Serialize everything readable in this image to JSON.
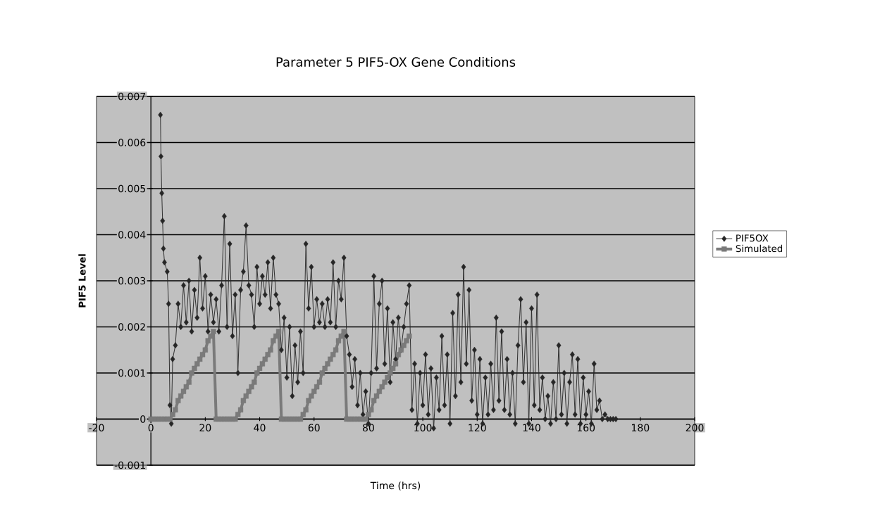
{
  "chart_data": {
    "type": "line",
    "title": "Parameter 5 PIF5-OX Gene Conditions",
    "xlabel": "Time (hrs)",
    "ylabel": "PIF5 Level",
    "xlim": [
      -20,
      200
    ],
    "xticks": [
      -20,
      0,
      20,
      40,
      60,
      80,
      100,
      120,
      140,
      160,
      180,
      200
    ],
    "ylim": [
      -0.001,
      0.007
    ],
    "yticks": [
      -0.001,
      0,
      0.001,
      0.002,
      0.003,
      0.004,
      0.005,
      0.006,
      0.007
    ],
    "grid": "y",
    "legend": "right",
    "series": [
      {
        "name": "PIF5OX",
        "color": "#262626",
        "marker": "diamond",
        "x": [
          3.5,
          3.7,
          4,
          4.3,
          4.6,
          5,
          6,
          6.5,
          7,
          7.5,
          8,
          9,
          10,
          11,
          12,
          13,
          14,
          15,
          16,
          17,
          18,
          19,
          20,
          21,
          22,
          23,
          24,
          25,
          26,
          27,
          28,
          29,
          30,
          31,
          32,
          33,
          34,
          35,
          36,
          37,
          38,
          39,
          40,
          41,
          42,
          43,
          44,
          45,
          46,
          47,
          48,
          49,
          50,
          51,
          52,
          53,
          54,
          55,
          56,
          57,
          58,
          59,
          60,
          61,
          62,
          63,
          64,
          65,
          66,
          67,
          68,
          69,
          70,
          71,
          72,
          73,
          74,
          75,
          76,
          77,
          78,
          79,
          80,
          81,
          82,
          83,
          84,
          85,
          86,
          87,
          88,
          89,
          90,
          91,
          92,
          93,
          94,
          95,
          96,
          97,
          98,
          99,
          100,
          101,
          102,
          103,
          104,
          105,
          106,
          107,
          108,
          109,
          110,
          111,
          112,
          113,
          114,
          115,
          116,
          117,
          118,
          119,
          120,
          121,
          122,
          123,
          124,
          125,
          126,
          127,
          128,
          129,
          130,
          131,
          132,
          133,
          134,
          135,
          136,
          137,
          138,
          139,
          140,
          141,
          142,
          143,
          144,
          145,
          146,
          147,
          148,
          149,
          150,
          151,
          152,
          153,
          154,
          155,
          156,
          157,
          158,
          159,
          160,
          161,
          162,
          163,
          164,
          165,
          166,
          167,
          168,
          169,
          170,
          171
        ],
        "values": [
          0.0066,
          0.0057,
          0.0049,
          0.0043,
          0.0037,
          0.0034,
          0.0032,
          0.0025,
          0.0003,
          -0.0001,
          0.0013,
          0.0016,
          0.0025,
          0.002,
          0.0029,
          0.0021,
          0.003,
          0.0019,
          0.0028,
          0.0022,
          0.0035,
          0.0024,
          0.0031,
          0.0019,
          0.0027,
          0.0021,
          0.0026,
          0.0019,
          0.0029,
          0.0044,
          0.002,
          0.0038,
          0.0018,
          0.0027,
          0.001,
          0.0028,
          0.0032,
          0.0042,
          0.0029,
          0.0027,
          0.002,
          0.0033,
          0.0025,
          0.0031,
          0.0027,
          0.0034,
          0.0024,
          0.0035,
          0.0027,
          0.0025,
          0.0015,
          0.0022,
          0.0009,
          0.002,
          0.0005,
          0.0016,
          0.0008,
          0.0019,
          0.001,
          0.0038,
          0.0024,
          0.0033,
          0.002,
          0.0026,
          0.0021,
          0.0025,
          0.002,
          0.0026,
          0.0021,
          0.0034,
          0.002,
          0.003,
          0.0026,
          0.0035,
          0.0018,
          0.0014,
          0.0007,
          0.0013,
          0.0003,
          0.001,
          0.0001,
          0.0006,
          -0.0001,
          0.001,
          0.0031,
          0.0011,
          0.0025,
          0.003,
          0.0012,
          0.0024,
          0.0008,
          0.0021,
          0.0013,
          0.0022,
          0.0015,
          0.002,
          0.0025,
          0.0029,
          0.0002,
          0.0012,
          -0.0001,
          0.001,
          0.0003,
          0.0014,
          0.0001,
          0.0011,
          -0.0002,
          0.0009,
          0.0002,
          0.0018,
          0.0003,
          0.0014,
          -0.0001,
          0.0023,
          0.0005,
          0.0027,
          0.0008,
          0.0033,
          0.0012,
          0.0028,
          0.0004,
          0.0015,
          0.0001,
          0.0013,
          -0.0001,
          0.0009,
          0.0001,
          0.0012,
          0.0002,
          0.0022,
          0.0004,
          0.0019,
          0.0002,
          0.0013,
          0.0001,
          0.001,
          -0.0001,
          0.0016,
          0.0026,
          0.0008,
          0.0021,
          -0.0001,
          0.0024,
          0.0003,
          0.0027,
          0.0002,
          0.0009,
          0,
          0.0005,
          -0.0001,
          0.0008,
          0,
          0.0016,
          0.0001,
          0.001,
          -0.0001,
          0.0008,
          0.0014,
          0.0001,
          0.0013,
          -0.0001,
          0.0009,
          0.0001,
          0.0006,
          -0.0001,
          0.0012,
          0.0002,
          0.0004,
          0,
          0.0001,
          0,
          0,
          0,
          0
        ]
      },
      {
        "name": "Simulated",
        "color": "#7a7a7a",
        "marker": "square",
        "x": [
          0,
          1,
          2,
          3,
          4,
          5,
          6,
          7,
          8,
          9,
          10,
          11,
          12,
          13,
          14,
          15,
          16,
          17,
          18,
          19,
          20,
          21,
          22,
          23,
          24,
          25,
          26,
          27,
          28,
          29,
          30,
          31,
          32,
          33,
          34,
          35,
          36,
          37,
          38,
          39,
          40,
          41,
          42,
          43,
          44,
          45,
          46,
          47,
          48,
          49,
          50,
          51,
          52,
          53,
          54,
          55,
          56,
          57,
          58,
          59,
          60,
          61,
          62,
          63,
          64,
          65,
          66,
          67,
          68,
          69,
          70,
          71,
          72,
          73,
          74,
          75,
          76,
          77,
          78,
          79,
          80,
          81,
          82,
          83,
          84,
          85,
          86,
          87,
          88,
          89,
          90,
          91,
          92,
          93,
          94,
          95
        ],
        "values": [
          0,
          0,
          0,
          0,
          0,
          0,
          0,
          0,
          0.0001,
          0.0002,
          0.0004,
          0.0005,
          0.0006,
          0.0007,
          0.0008,
          0.001,
          0.0011,
          0.0012,
          0.0013,
          0.0014,
          0.0015,
          0.0017,
          0.0018,
          0.0019,
          0,
          0,
          0,
          0,
          0,
          0,
          0,
          0,
          0.0001,
          0.0002,
          0.0004,
          0.0005,
          0.0006,
          0.0007,
          0.0008,
          0.001,
          0.0011,
          0.0012,
          0.0013,
          0.0014,
          0.0015,
          0.0017,
          0.0018,
          0.0019,
          0,
          0,
          0,
          0,
          0,
          0,
          0,
          0,
          0.0001,
          0.0002,
          0.0004,
          0.0005,
          0.0006,
          0.0007,
          0.0008,
          0.001,
          0.0011,
          0.0012,
          0.0013,
          0.0014,
          0.0015,
          0.0017,
          0.0018,
          0.0019,
          0,
          0,
          0,
          0,
          0,
          0,
          0,
          0,
          0.0001,
          0.0002,
          0.0004,
          0.0005,
          0.0006,
          0.0007,
          0.0008,
          0.0009,
          0.001,
          0.0011,
          0.0012,
          0.0014,
          0.0015,
          0.0016,
          0.0017,
          0.0018
        ]
      }
    ]
  }
}
